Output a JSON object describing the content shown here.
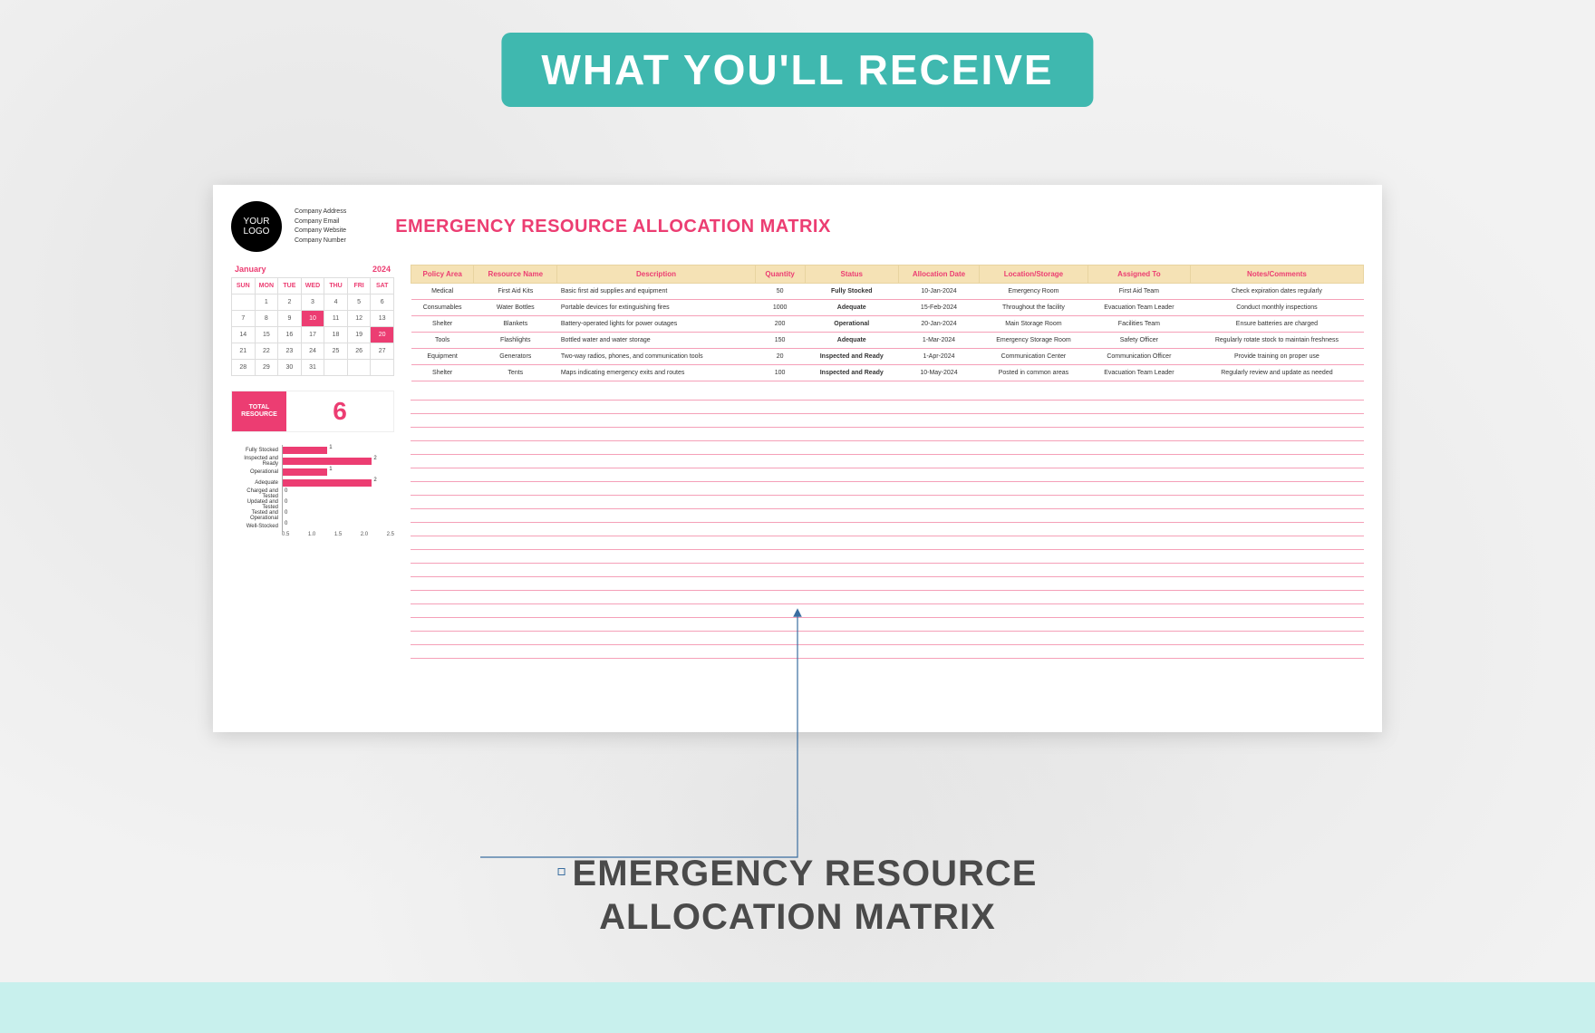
{
  "banner": {
    "text": "WHAT YOU'LL RECEIVE",
    "bg": "#3fb8af",
    "fg": "#ffffff"
  },
  "logo": {
    "text": "YOUR LOGO"
  },
  "company": {
    "l1": "Company Address",
    "l2": "Company Email",
    "l3": "Company Website",
    "l4": "Company Number"
  },
  "doc_title": "EMERGENCY RESOURCE ALLOCATION MATRIX",
  "calendar": {
    "month": "January",
    "year": "2024",
    "days": [
      "SUN",
      "MON",
      "TUE",
      "WED",
      "THU",
      "FRI",
      "SAT"
    ],
    "weeks": [
      [
        "",
        "1",
        "2",
        "3",
        "4",
        "5",
        "6"
      ],
      [
        "7",
        "8",
        "9",
        "10",
        "11",
        "12",
        "13"
      ],
      [
        "14",
        "15",
        "16",
        "17",
        "18",
        "19",
        "20"
      ],
      [
        "21",
        "22",
        "23",
        "24",
        "25",
        "26",
        "27"
      ],
      [
        "28",
        "29",
        "30",
        "31",
        "",
        "",
        ""
      ]
    ],
    "highlight": [
      "10",
      "20"
    ]
  },
  "total": {
    "label": "TOTAL RESOURCE",
    "value": "6"
  },
  "chart": {
    "type": "bar",
    "orientation": "horizontal",
    "bar_color": "#ec3d72",
    "categories": [
      "Fully Stocked",
      "Inspected and Ready",
      "Operational",
      "Adequate",
      "Charged and Tested",
      "Updated and Tested",
      "Tested and Operational",
      "Well-Stocked"
    ],
    "values": [
      1,
      2,
      1,
      2,
      0,
      0,
      0,
      0
    ],
    "xlim": [
      0,
      2.5
    ],
    "xticks": [
      0.5,
      1.0,
      1.5,
      2.0,
      2.5
    ],
    "label_fontsize": 6
  },
  "matrix": {
    "headers": [
      "Policy Area",
      "Resource Name",
      "Description",
      "Quantity",
      "Status",
      "Allocation Date",
      "Location/Storage",
      "Assigned To",
      "Notes/Comments"
    ],
    "rows": [
      {
        "area": "Medical",
        "name": "First Aid Kits",
        "desc": "Basic first aid supplies and equipment",
        "qty": "50",
        "status": "Fully Stocked",
        "status_cls": "status-green",
        "date": "10-Jan-2024",
        "loc": "Emergency Room",
        "assigned": "First Aid Team",
        "notes": "Check expiration dates regularly"
      },
      {
        "area": "Consumables",
        "name": "Water Bottles",
        "desc": "Portable devices for extinguishing fires",
        "qty": "1000",
        "status": "Adequate",
        "status_cls": "status-orange",
        "date": "15-Feb-2024",
        "loc": "Throughout the facility",
        "assigned": "Evacuation Team Leader",
        "notes": "Conduct monthly inspections"
      },
      {
        "area": "Shelter",
        "name": "Blankets",
        "desc": "Battery-operated lights for power outages",
        "qty": "200",
        "status": "Operational",
        "status_cls": "status-orange",
        "date": "20-Jan-2024",
        "loc": "Main Storage Room",
        "assigned": "Facilities Team",
        "notes": "Ensure batteries are charged"
      },
      {
        "area": "Tools",
        "name": "Flashlights",
        "desc": "Bottled water and water storage",
        "qty": "150",
        "status": "Adequate",
        "status_cls": "status-orange",
        "date": "1-Mar-2024",
        "loc": "Emergency Storage Room",
        "assigned": "Safety Officer",
        "notes": "Regularly rotate stock to maintain freshness"
      },
      {
        "area": "Equipment",
        "name": "Generators",
        "desc": "Two-way radios, phones, and communication tools",
        "qty": "20",
        "status": "Inspected and Ready",
        "status_cls": "status-green",
        "date": "1-Apr-2024",
        "loc": "Communication Center",
        "assigned": "Communication Officer",
        "notes": "Provide training on proper use"
      },
      {
        "area": "Shelter",
        "name": "Tents",
        "desc": "Maps indicating emergency exits and routes",
        "qty": "100",
        "status": "Inspected and Ready",
        "status_cls": "status-green",
        "date": "10-May-2024",
        "loc": "Posted in common areas",
        "assigned": "Evacuation Team Leader",
        "notes": "Regularly review and update as needed"
      }
    ],
    "blank_rows": 20,
    "header_bg": "#f5e2b5",
    "header_fg": "#ec3d72",
    "line_color": "#f5a0b8"
  },
  "callout": {
    "label_l1": "EMERGENCY RESOURCE",
    "label_l2": "ALLOCATION MATRIX",
    "line_color": "#3b6ea0"
  },
  "colors": {
    "accent": "#ec3d72",
    "teal": "#3fb8af"
  }
}
